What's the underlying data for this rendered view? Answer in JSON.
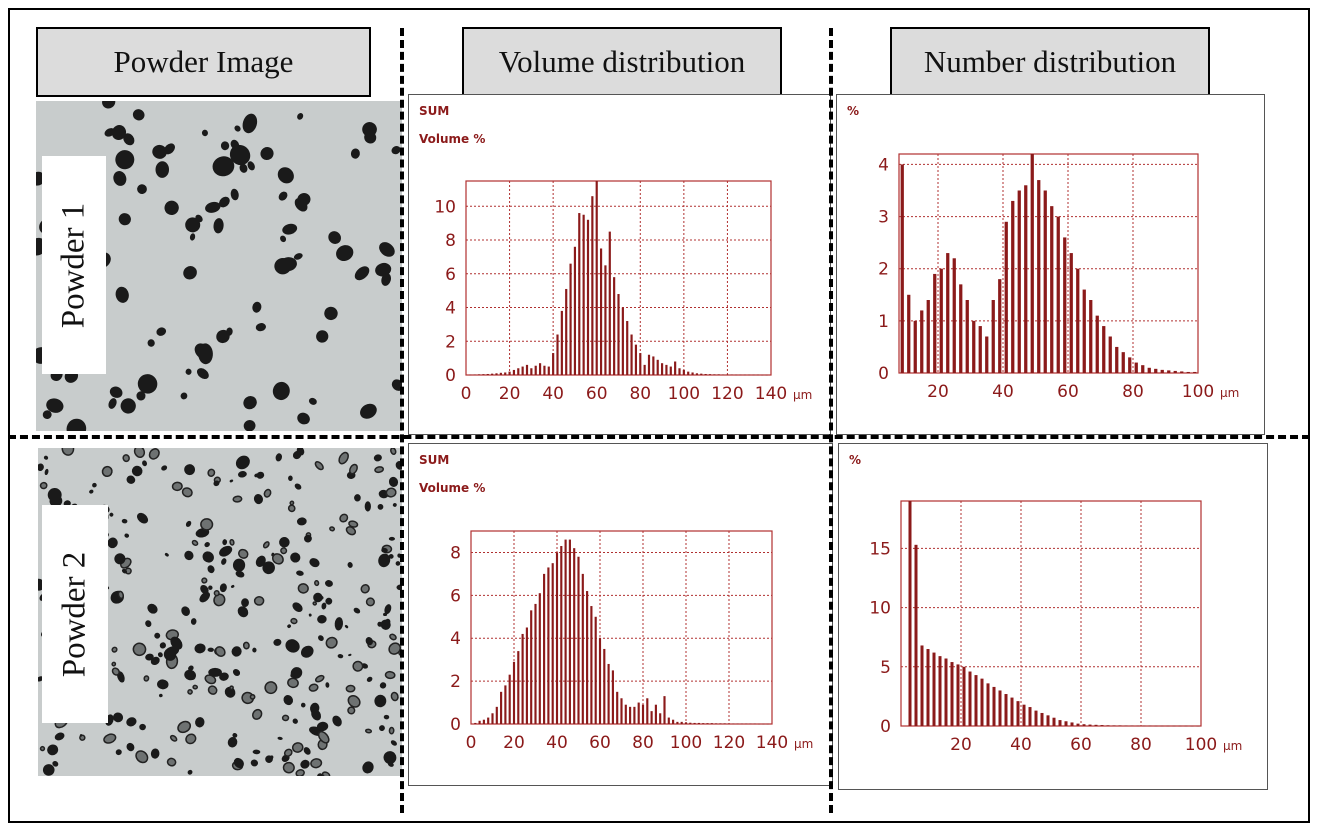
{
  "headers": {
    "powder_image": "Powder Image",
    "volume": "Volume distribution",
    "number": "Number distribution"
  },
  "powders": [
    "Powder 1",
    "Powder 2"
  ],
  "colors": {
    "bar": "#8b1a1a",
    "grid": "#b03030",
    "text": "#8b1a1a"
  },
  "chart_data": [
    {
      "id": "p1-volume",
      "type": "bar",
      "title_lines": [
        "SUM",
        "Volume %"
      ],
      "unit": "µm",
      "xlim": [
        0,
        140
      ],
      "ylim": [
        0,
        11.5
      ],
      "xticks": [
        0,
        20,
        40,
        60,
        80,
        100,
        120,
        140
      ],
      "yticks": [
        0,
        2,
        4,
        6,
        8,
        10
      ],
      "bar_x": [
        2,
        4,
        6,
        8,
        10,
        12,
        14,
        16,
        18,
        20,
        22,
        24,
        26,
        28,
        30,
        32,
        34,
        36,
        38,
        40,
        42,
        44,
        46,
        48,
        50,
        52,
        54,
        56,
        58,
        60,
        62,
        64,
        66,
        68,
        70,
        72,
        74,
        76,
        78,
        80,
        82,
        84,
        86,
        88,
        90,
        92,
        94,
        96,
        98,
        100,
        102,
        104,
        106,
        108,
        110,
        112,
        114,
        116,
        118,
        120,
        122,
        124,
        126,
        128,
        130,
        132,
        134,
        136,
        138
      ],
      "values": [
        0.02,
        0.03,
        0.04,
        0.05,
        0.06,
        0.08,
        0.1,
        0.13,
        0.15,
        0.2,
        0.3,
        0.4,
        0.5,
        0.6,
        0.4,
        0.55,
        0.7,
        0.55,
        0.5,
        1.3,
        2.4,
        3.8,
        5.1,
        6.6,
        7.6,
        9.6,
        9.5,
        9.2,
        10.6,
        11.6,
        7.5,
        6.5,
        8.5,
        5.8,
        4.8,
        4.0,
        3.2,
        2.4,
        1.8,
        1.3,
        0.6,
        1.2,
        1.1,
        0.9,
        0.7,
        0.6,
        0.5,
        0.8,
        0.4,
        0.3,
        0.2,
        0.15,
        0.1,
        0.08,
        0.06,
        0.05,
        0.04,
        0.04,
        0.03,
        0.03,
        0.03,
        0.02,
        0.02,
        0.02,
        0.02,
        0.02,
        0.02,
        0.01,
        0.01
      ],
      "grid": true
    },
    {
      "id": "p1-number",
      "type": "bar",
      "title_lines": [
        "%"
      ],
      "unit": "µm",
      "xlim": [
        8,
        100
      ],
      "ylim": [
        0,
        4.2
      ],
      "xticks": [
        20,
        40,
        60,
        80,
        100
      ],
      "yticks": [
        0,
        1,
        2,
        3,
        4
      ],
      "bar_x": [
        9,
        11,
        13,
        15,
        17,
        19,
        21,
        23,
        25,
        27,
        29,
        31,
        33,
        35,
        37,
        39,
        41,
        43,
        45,
        47,
        49,
        51,
        53,
        55,
        57,
        59,
        61,
        63,
        65,
        67,
        69,
        71,
        73,
        75,
        77,
        79,
        81,
        83,
        85,
        87,
        89,
        91,
        93,
        95,
        97,
        99
      ],
      "values": [
        4.0,
        1.5,
        1.0,
        1.2,
        1.4,
        1.9,
        2.0,
        2.3,
        2.2,
        1.7,
        1.4,
        1.0,
        0.9,
        0.7,
        1.4,
        1.8,
        2.9,
        3.3,
        3.5,
        3.6,
        4.2,
        3.7,
        3.5,
        3.2,
        3.0,
        2.6,
        2.3,
        2.0,
        1.6,
        1.4,
        1.1,
        0.9,
        0.7,
        0.5,
        0.4,
        0.3,
        0.2,
        0.15,
        0.1,
        0.08,
        0.06,
        0.05,
        0.04,
        0.03,
        0.02,
        0.02
      ],
      "grid": true
    },
    {
      "id": "p2-volume",
      "type": "bar",
      "title_lines": [
        "SUM",
        "Volume %"
      ],
      "unit": "µm",
      "xlim": [
        0,
        140
      ],
      "ylim": [
        0,
        9
      ],
      "xticks": [
        0,
        20,
        40,
        60,
        80,
        100,
        120,
        140
      ],
      "yticks": [
        0,
        2,
        4,
        6,
        8
      ],
      "bar_x": [
        2,
        4,
        6,
        8,
        10,
        12,
        14,
        16,
        18,
        20,
        22,
        24,
        26,
        28,
        30,
        32,
        34,
        36,
        38,
        40,
        42,
        44,
        46,
        48,
        50,
        52,
        54,
        56,
        58,
        60,
        62,
        64,
        66,
        68,
        70,
        72,
        74,
        76,
        78,
        80,
        82,
        84,
        86,
        88,
        90,
        92,
        94,
        96,
        98,
        100,
        102,
        104,
        106,
        108,
        110,
        112,
        114,
        116,
        118,
        120,
        122,
        124,
        126,
        128,
        130,
        132,
        134,
        136,
        138
      ],
      "values": [
        0.05,
        0.15,
        0.2,
        0.3,
        0.5,
        0.8,
        1.5,
        1.8,
        2.3,
        2.9,
        3.4,
        4.2,
        4.5,
        5.3,
        5.6,
        6.1,
        7.0,
        7.3,
        7.5,
        8.0,
        8.3,
        8.6,
        8.6,
        8.2,
        7.8,
        7.0,
        6.2,
        5.5,
        5.0,
        4.0,
        3.5,
        2.8,
        2.5,
        1.5,
        1.2,
        0.9,
        0.8,
        0.8,
        1.0,
        0.9,
        1.2,
        0.6,
        0.9,
        0.5,
        1.3,
        0.3,
        0.2,
        0.1,
        0.1,
        0.08,
        0.06,
        0.05,
        0.05,
        0.04,
        0.04,
        0.04,
        0.03,
        0.03,
        0.03,
        0.02,
        0.02,
        0.02,
        0.02,
        0.02,
        0.02,
        0.02,
        0.01,
        0.01,
        0.01
      ],
      "grid": true
    },
    {
      "id": "p2-number",
      "type": "bar",
      "title_lines": [
        "%"
      ],
      "unit": "µm",
      "xlim": [
        0,
        100
      ],
      "ylim": [
        0,
        19
      ],
      "xticks": [
        20,
        40,
        60,
        80,
        100
      ],
      "yticks": [
        0,
        5,
        10,
        15
      ],
      "bar_x": [
        3,
        5,
        7,
        9,
        11,
        13,
        15,
        17,
        19,
        21,
        23,
        25,
        27,
        29,
        31,
        33,
        35,
        37,
        39,
        41,
        43,
        45,
        47,
        49,
        51,
        53,
        55,
        57,
        59,
        61,
        63,
        65,
        67,
        69,
        71,
        73,
        75,
        77,
        79,
        81,
        83,
        85,
        87,
        89,
        91,
        93,
        95,
        97,
        99
      ],
      "values": [
        19.5,
        15.3,
        6.8,
        6.5,
        6.2,
        5.9,
        5.7,
        5.4,
        5.2,
        5.0,
        4.6,
        4.3,
        4.0,
        3.6,
        3.3,
        3.0,
        2.7,
        2.4,
        2.1,
        1.8,
        1.6,
        1.3,
        1.1,
        0.9,
        0.7,
        0.5,
        0.4,
        0.3,
        0.2,
        0.15,
        0.12,
        0.1,
        0.08,
        0.06,
        0.05,
        0.05,
        0.04,
        0.04,
        0.03,
        0.03,
        0.03,
        0.02,
        0.02,
        0.02,
        0.02,
        0.02,
        0.02,
        0.01,
        0.01
      ],
      "grid": true
    }
  ]
}
